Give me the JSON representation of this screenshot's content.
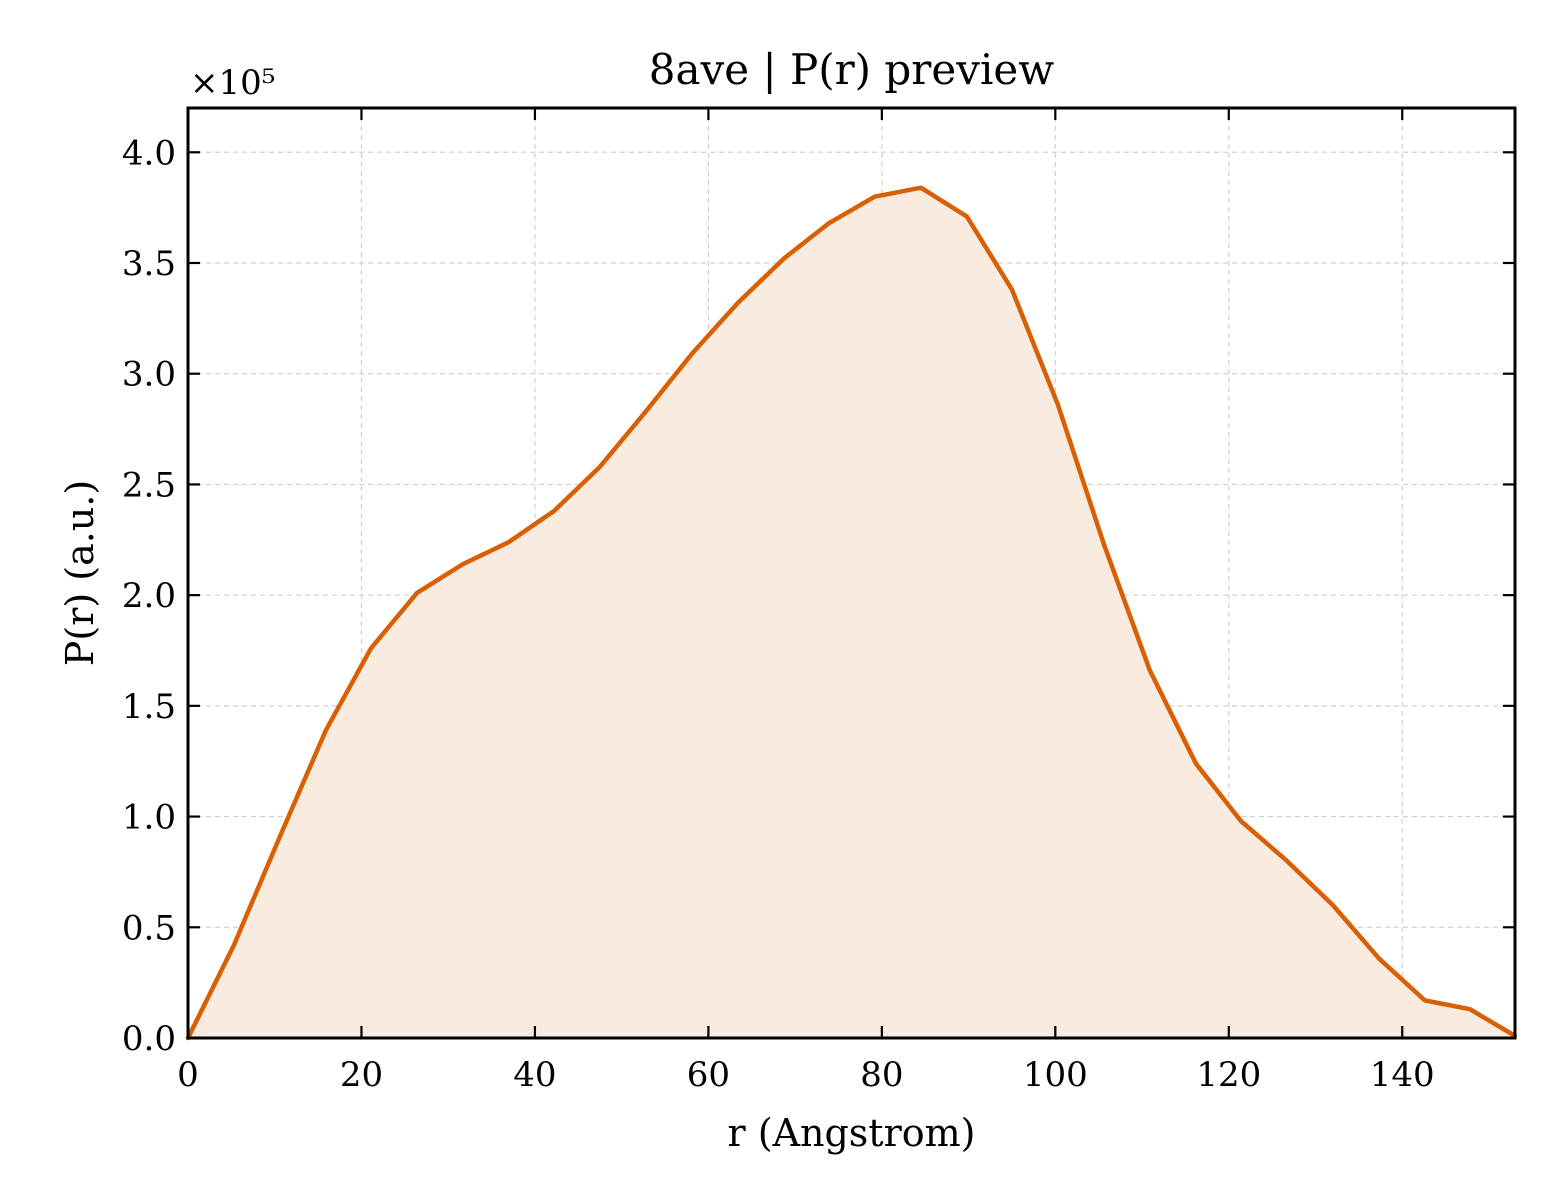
{
  "chart_data": {
    "type": "area",
    "title": "8ave | P(r) preview",
    "xlabel": "r (Angstrom)",
    "ylabel": "P(r) (a.u.)",
    "y_offset_label": "×10⁵",
    "y_scale_factor": 100000,
    "xlim": [
      0,
      153
    ],
    "ylim": [
      0,
      4.2
    ],
    "x_ticks": [
      0,
      20,
      40,
      60,
      80,
      100,
      120,
      140
    ],
    "x_tick_labels": [
      "0",
      "20",
      "40",
      "60",
      "80",
      "100",
      "120",
      "140"
    ],
    "y_ticks": [
      0,
      0.5,
      1.0,
      1.5,
      2.0,
      2.5,
      3.0,
      3.5,
      4.0
    ],
    "y_tick_labels": [
      "0.0",
      "0.5",
      "1.0",
      "1.5",
      "2.0",
      "2.5",
      "3.0",
      "3.5",
      "4.0"
    ],
    "grid": true,
    "line_color": "#d95f02",
    "fill_color": "#f9ebe0",
    "series": [
      {
        "x": [
          0,
          5.3,
          10.6,
          15.9,
          21.1,
          26.4,
          31.7,
          37.0,
          42.2,
          47.5,
          52.8,
          58.1,
          63.4,
          68.7,
          73.9,
          79.2,
          84.5,
          89.8,
          95.0,
          100.3,
          105.6,
          110.9,
          116.2,
          121.4,
          126.7,
          132.0,
          137.3,
          142.6,
          147.8,
          153.0
        ],
        "y": [
          0.0,
          0.42,
          0.91,
          1.39,
          1.76,
          2.01,
          2.14,
          2.24,
          2.38,
          2.58,
          2.83,
          3.09,
          3.32,
          3.52,
          3.68,
          3.8,
          3.84,
          3.71,
          3.38,
          2.86,
          2.23,
          1.66,
          1.24,
          0.98,
          0.8,
          0.6,
          0.36,
          0.17,
          0.13,
          0.01
        ]
      }
    ]
  }
}
